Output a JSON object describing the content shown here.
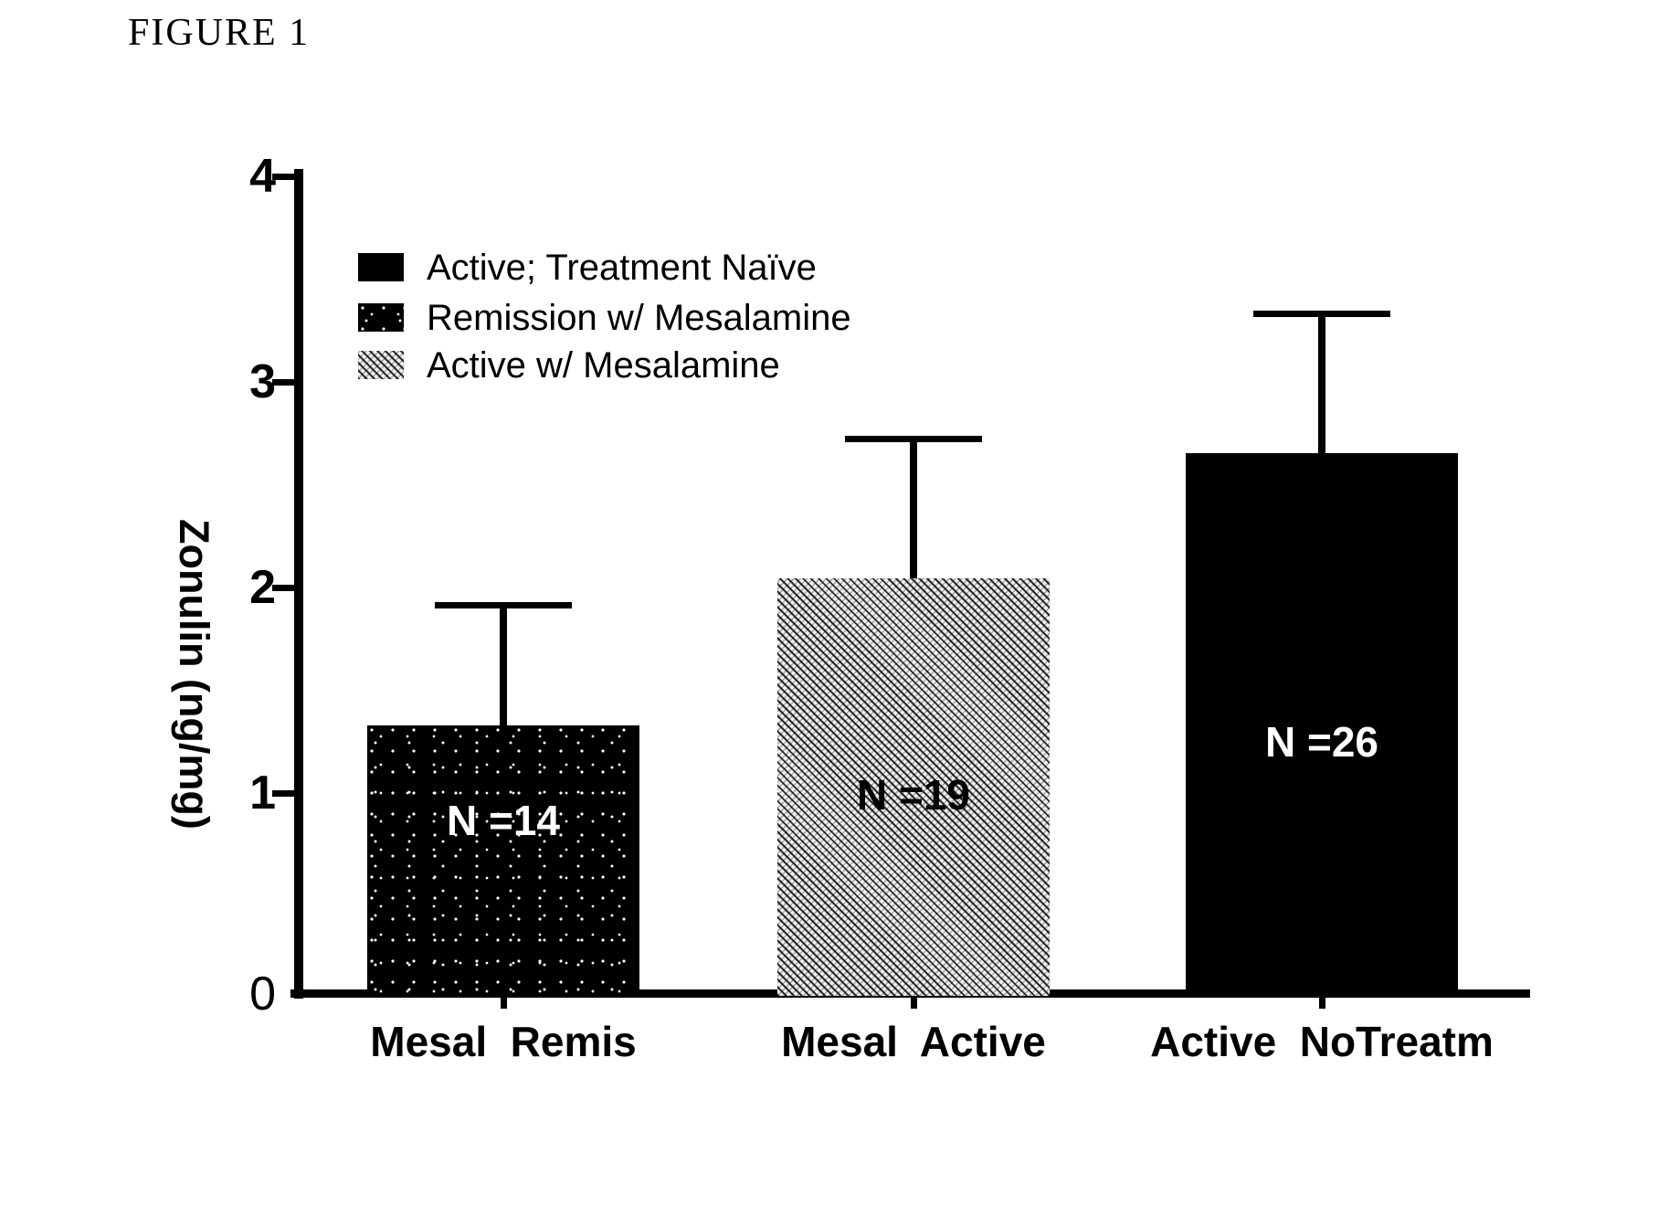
{
  "page": {
    "figure_label": "FIGURE 1",
    "background": "#ffffff"
  },
  "legend": {
    "items": [
      {
        "label": "Active; Treatment Naïve",
        "swatch": "solid-black"
      },
      {
        "label": "Remission w/ Mesalamine",
        "swatch": "speckled-black"
      },
      {
        "label": "Active w/ Mesalamine",
        "swatch": "gray-hatch"
      }
    ]
  },
  "chart_data": {
    "type": "bar",
    "title": "",
    "xlabel": "",
    "ylabel": "Zonulin (ng/mg)",
    "ylim": [
      0,
      4
    ],
    "yticks": [
      4,
      3,
      2,
      1,
      0
    ],
    "grid": false,
    "legend_position": "upper-left-inside",
    "categories": [
      "Mesal  Remis",
      "Mesal  Active",
      "Active  NoTreatm"
    ],
    "bars": [
      {
        "category": "Mesal  Remis",
        "value": 1.32,
        "error_top": 1.91,
        "n_label": "N =14",
        "fill": "speckled-black",
        "n_label_color": "#ffffff"
      },
      {
        "category": "Mesal  Active",
        "value": 2.04,
        "error_top": 2.72,
        "n_label": "N =19",
        "fill": "gray-hatch",
        "n_label_color": "#000000"
      },
      {
        "category": "Active  NoTreatm",
        "value": 2.65,
        "error_top": 3.33,
        "n_label": "N =26",
        "fill": "solid-black",
        "n_label_color": "#ffffff"
      }
    ],
    "colors": {
      "axis": "#000000",
      "bar_black": "#000000",
      "bar_gray_effective": "#aaaaaa",
      "text": "#000000"
    }
  }
}
